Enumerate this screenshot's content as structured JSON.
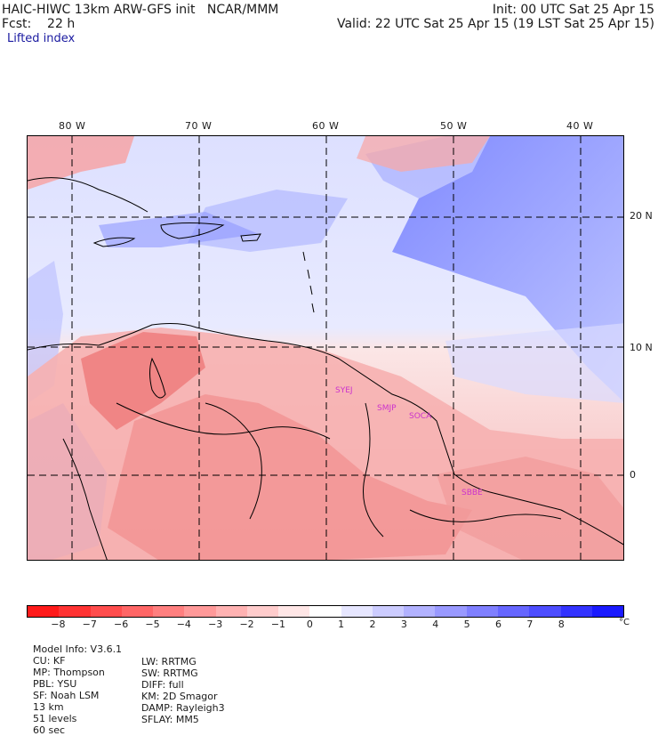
{
  "header": {
    "line1_left": "HAIC-HIWC 13km ARW-GFS init   NCAR/MMM",
    "line1_right": "Init: 00 UTC Sat 25 Apr 15",
    "line2_left": "Fcst:    22 h",
    "line2_right": "Valid: 22 UTC Sat 25 Apr 15 (19 LST Sat 25 Apr 15)",
    "field_name": "Lifted index"
  },
  "axes": {
    "lon_labels": [
      "80 W",
      "70 W",
      "60 W",
      "50 W",
      "40 W"
    ],
    "lat_labels": [
      "20 N",
      "10 N",
      "0"
    ]
  },
  "stations": [
    "SYEJ",
    "SMJP",
    "SOCA",
    "SBBE"
  ],
  "colorbar": {
    "colors": [
      "#ff1a1a",
      "#ff3333",
      "#ff4d4d",
      "#ff6666",
      "#ff7f7f",
      "#ff9999",
      "#ffb2b2",
      "#ffcccc",
      "#ffe6e6",
      "#ffffff",
      "#e6e6ff",
      "#ccccff",
      "#b2b2ff",
      "#9999ff",
      "#7f7fff",
      "#6666ff",
      "#4d4dff",
      "#3333ff",
      "#1a1aff"
    ],
    "ticks": [
      "−8",
      "−7",
      "−6",
      "−5",
      "−4",
      "−3",
      "−2",
      "−1",
      "0",
      "1",
      "2",
      "3",
      "4",
      "5",
      "6",
      "7",
      "8"
    ],
    "unit": "°C"
  },
  "footer": {
    "line1": [
      "Model Info: V3.6.1",
      "CU: KF",
      "MP: Thompson",
      "PBL: YSU",
      "SF: Noah LSM",
      "13 km",
      "51 levels",
      "60 sec"
    ],
    "line2": [
      "LW: RRTMG",
      "SW: RRTMG",
      "DIFF: full",
      "KM: 2D Smagor",
      "DAMP: Rayleigh3",
      "SFLAY: MM5"
    ]
  }
}
